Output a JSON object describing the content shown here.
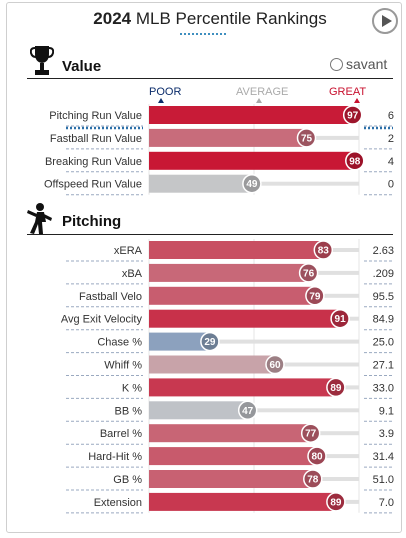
{
  "header": {
    "year": "2024",
    "title": "MLB Percentile Rankings"
  },
  "sections": {
    "value": "Value",
    "pitching": "Pitching",
    "logo": "savant"
  },
  "scale": {
    "poor": "POOR",
    "average": "AVERAGE",
    "great": "GREAT",
    "poor_color": "#0c2d6b",
    "average_color": "#aaaaaa",
    "great_color": "#c8102e"
  },
  "chart_data": [
    {
      "type": "bar",
      "group": "Value",
      "xlim": [
        0,
        100
      ],
      "rows": [
        {
          "metric": "Pitching Run Value",
          "percentile": 97,
          "value": "6"
        },
        {
          "metric": "Fastball Run Value",
          "percentile": 75,
          "value": "2"
        },
        {
          "metric": "Breaking Run Value",
          "percentile": 98,
          "value": "4"
        },
        {
          "metric": "Offspeed Run Value",
          "percentile": 49,
          "value": "0"
        }
      ]
    },
    {
      "type": "bar",
      "group": "Pitching",
      "xlim": [
        0,
        100
      ],
      "rows": [
        {
          "metric": "xERA",
          "percentile": 83,
          "value": "2.63"
        },
        {
          "metric": "xBA",
          "percentile": 76,
          "value": ".209"
        },
        {
          "metric": "Fastball Velo",
          "percentile": 79,
          "value": "95.5"
        },
        {
          "metric": "Avg Exit Velocity",
          "percentile": 91,
          "value": "84.9"
        },
        {
          "metric": "Chase %",
          "percentile": 29,
          "value": "25.0"
        },
        {
          "metric": "Whiff %",
          "percentile": 60,
          "value": "27.1"
        },
        {
          "metric": "K %",
          "percentile": 89,
          "value": "33.0"
        },
        {
          "metric": "BB %",
          "percentile": 47,
          "value": "9.1"
        },
        {
          "metric": "Barrel %",
          "percentile": 77,
          "value": "3.9"
        },
        {
          "metric": "Hard-Hit %",
          "percentile": 80,
          "value": "31.4"
        },
        {
          "metric": "GB %",
          "percentile": 78,
          "value": "51.0"
        },
        {
          "metric": "Extension",
          "percentile": 89,
          "value": "7.0"
        }
      ]
    }
  ]
}
